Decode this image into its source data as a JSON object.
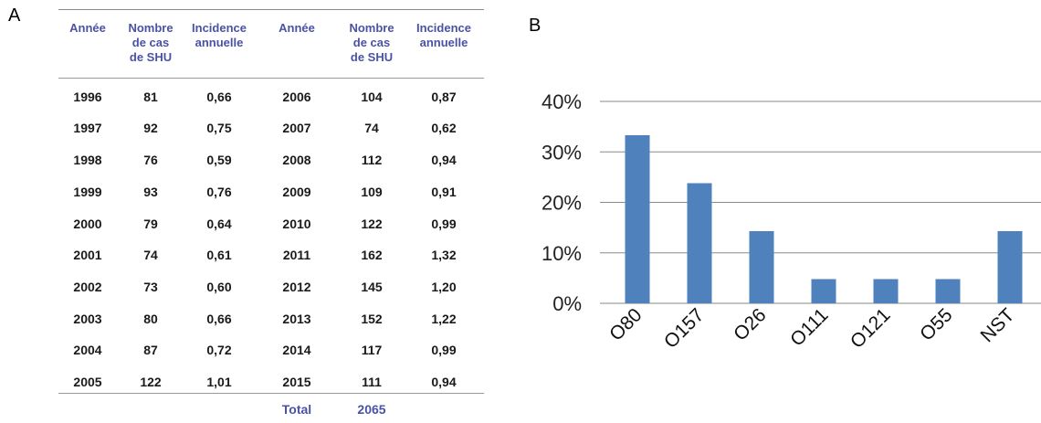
{
  "panels": {
    "a": "A",
    "b": "B"
  },
  "table": {
    "headers": [
      "Année",
      "Nombre\nde cas\nde SHU",
      "Incidence\nannuelle",
      "Année",
      "Nombre\nde cas\nde SHU",
      "Incidence\nannuelle"
    ],
    "rows": [
      [
        "1996",
        "81",
        "0,66",
        "2006",
        "104",
        "0,87"
      ],
      [
        "1997",
        "92",
        "0,75",
        "2007",
        "74",
        "0,62"
      ],
      [
        "1998",
        "76",
        "0,59",
        "2008",
        "112",
        "0,94"
      ],
      [
        "1999",
        "93",
        "0,76",
        "2009",
        "109",
        "0,91"
      ],
      [
        "2000",
        "79",
        "0,64",
        "2010",
        "122",
        "0,99"
      ],
      [
        "2001",
        "74",
        "0,61",
        "2011",
        "162",
        "1,32"
      ],
      [
        "2002",
        "73",
        "0,60",
        "2012",
        "145",
        "1,20"
      ],
      [
        "2003",
        "80",
        "0,66",
        "2013",
        "152",
        "1,22"
      ],
      [
        "2004",
        "87",
        "0,72",
        "2014",
        "117",
        "0,99"
      ],
      [
        "2005",
        "122",
        "1,01",
        "2015",
        "111",
        "0,94"
      ]
    ],
    "total_label": "Total",
    "total_value": "2065"
  },
  "chart_data": {
    "type": "bar",
    "categories": [
      "O80",
      "O157",
      "O26",
      "O111",
      "O121",
      "O55",
      "NST"
    ],
    "values": [
      33.3,
      23.8,
      14.3,
      4.8,
      4.8,
      4.8,
      14.3
    ],
    "ylim": [
      0,
      40
    ],
    "yticks": [
      "0%",
      "10%",
      "20%",
      "30%",
      "40%"
    ],
    "grid": true,
    "legend": "none",
    "bar_color": "#4f81bd",
    "grid_color": "#8a8a8a",
    "title": "",
    "xlabel": "",
    "ylabel": ""
  }
}
